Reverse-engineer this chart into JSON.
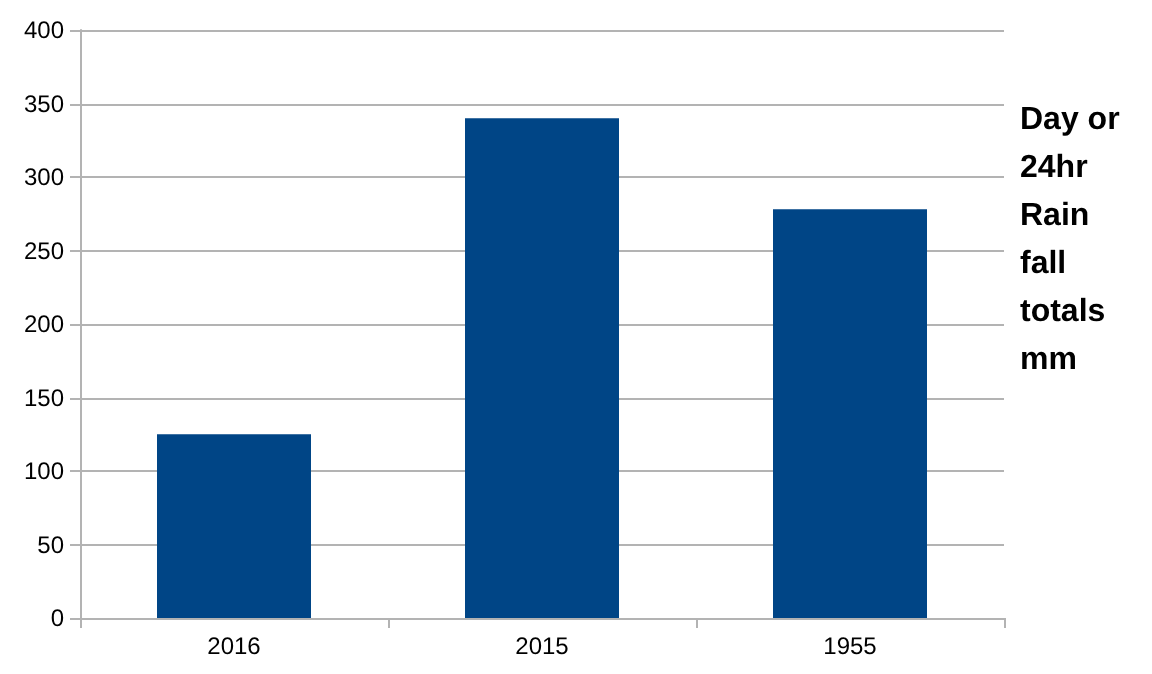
{
  "chart_data": {
    "type": "bar",
    "categories": [
      "2016",
      "2015",
      "1955"
    ],
    "values": [
      125,
      340,
      278
    ],
    "color": "#004586",
    "ylim": [
      0,
      400
    ],
    "yticks": [
      0,
      50,
      100,
      150,
      200,
      250,
      300,
      350,
      400
    ],
    "grid": "y",
    "annotations": [
      "Day or 24hr Rain fall totals mm"
    ]
  }
}
